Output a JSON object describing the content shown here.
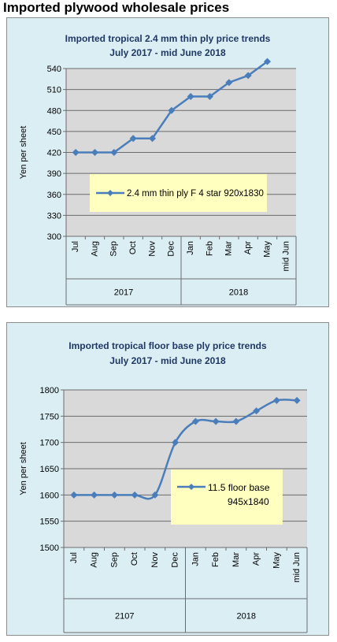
{
  "heading": "Imported plywood wholesale prices",
  "chart_data": [
    {
      "type": "line",
      "title": "Imported tropical 2.4 mm thin ply price trends",
      "subtitle": "July 2017 -  mid June 2018",
      "ylabel": "Yen per sheet",
      "xlabel": "",
      "categories": [
        "Jul",
        "Aug",
        "Sep",
        "Oct",
        "Nov",
        "Dec",
        "Jan",
        "Feb",
        "Mar",
        "Apr",
        "May",
        "mid Jun"
      ],
      "groups": [
        {
          "label": "2017",
          "start": 0,
          "end": 5
        },
        {
          "label": "2018",
          "start": 6,
          "end": 11
        }
      ],
      "series": [
        {
          "name": "2.4 mm thin ply F 4 star 920x1830",
          "values": [
            420,
            420,
            420,
            440,
            440,
            480,
            500,
            500,
            520,
            530,
            550,
            null
          ]
        }
      ],
      "ylim": [
        300,
        540
      ],
      "yticks": [
        300,
        330,
        360,
        390,
        420,
        450,
        480,
        510,
        540
      ],
      "grid": true,
      "legend_position": "center-right",
      "colors": {
        "line": "#4a7ebb",
        "plot_bg": "#d9d9d9",
        "panel_bg": "#dbeef4",
        "legend_bg": "#ffffc0"
      }
    },
    {
      "type": "line",
      "title": "Imported tropical floor base ply price trends",
      "subtitle": "July 2017 - mid June 2018",
      "ylabel": "Yen per sheet",
      "xlabel": "",
      "categories": [
        "Jul",
        "Aug",
        "Sep",
        "Oct",
        "Nov",
        "Dec",
        "Jan",
        "Feb",
        "Mar",
        "Apr",
        "May",
        "mid Jun"
      ],
      "groups": [
        {
          "label": "2107",
          "start": 0,
          "end": 5
        },
        {
          "label": "2018",
          "start": 6,
          "end": 11
        }
      ],
      "series": [
        {
          "name": "11.5 floor base 945x1840",
          "values": [
            1600,
            1600,
            1600,
            1600,
            1600,
            1700,
            1740,
            1740,
            1740,
            1760,
            1780,
            1780
          ]
        }
      ],
      "ylim": [
        1500,
        1800
      ],
      "yticks": [
        1500,
        1550,
        1600,
        1650,
        1700,
        1750,
        1800
      ],
      "grid": true,
      "smooth": true,
      "legend_position": "center-right",
      "colors": {
        "line": "#4a7ebb",
        "plot_bg": "#d9d9d9",
        "panel_bg": "#dbeef4",
        "legend_bg": "#ffffc0"
      }
    }
  ]
}
